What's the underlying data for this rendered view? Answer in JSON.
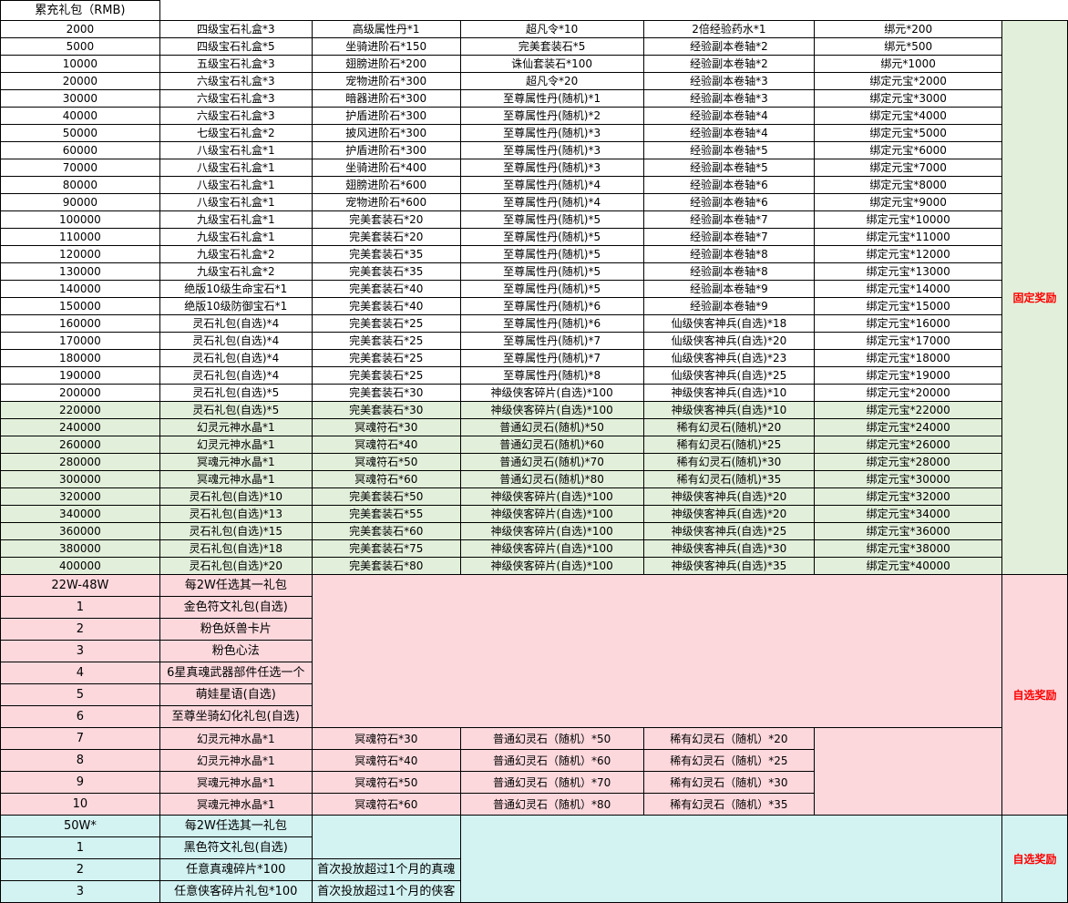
{
  "header": {
    "title": "累充礼包（RMB)"
  },
  "fixed": {
    "label": "固定奖励",
    "colors": {
      "white": "#ffffff",
      "green": "#e2efda"
    },
    "rows": [
      [
        "2000",
        "四级宝石礼盒*3",
        "高级属性丹*1",
        "超凡令*10",
        "2倍经验药水*1",
        "绑元*200"
      ],
      [
        "5000",
        "四级宝石礼盒*5",
        "坐骑进阶石*150",
        "完美套装石*5",
        "经验副本卷轴*2",
        "绑元*500"
      ],
      [
        "10000",
        "五级宝石礼盒*3",
        "翅膀进阶石*200",
        "诛仙套装石*100",
        "经验副本卷轴*2",
        "绑元*1000"
      ],
      [
        "20000",
        "六级宝石礼盒*3",
        "宠物进阶石*300",
        "超凡令*20",
        "经验副本卷轴*3",
        "绑定元宝*2000"
      ],
      [
        "30000",
        "六级宝石礼盒*3",
        "暗器进阶石*300",
        "至尊属性丹(随机)*1",
        "经验副本卷轴*3",
        "绑定元宝*3000"
      ],
      [
        "40000",
        "六级宝石礼盒*3",
        "护盾进阶石*300",
        "至尊属性丹(随机)*2",
        "经验副本卷轴*4",
        "绑定元宝*4000"
      ],
      [
        "50000",
        "七级宝石礼盒*2",
        "披风进阶石*300",
        "至尊属性丹(随机)*3",
        "经验副本卷轴*4",
        "绑定元宝*5000"
      ],
      [
        "60000",
        "八级宝石礼盒*1",
        "护盾进阶石*300",
        "至尊属性丹(随机)*3",
        "经验副本卷轴*5",
        "绑定元宝*6000"
      ],
      [
        "70000",
        "八级宝石礼盒*1",
        "坐骑进阶石*400",
        "至尊属性丹(随机)*3",
        "经验副本卷轴*5",
        "绑定元宝*7000"
      ],
      [
        "80000",
        "八级宝石礼盒*1",
        "翅膀进阶石*600",
        "至尊属性丹(随机)*4",
        "经验副本卷轴*6",
        "绑定元宝*8000"
      ],
      [
        "90000",
        "八级宝石礼盒*1",
        "宠物进阶石*600",
        "至尊属性丹(随机)*4",
        "经验副本卷轴*6",
        "绑定元宝*9000"
      ],
      [
        "100000",
        "九级宝石礼盒*1",
        "完美套装石*20",
        "至尊属性丹(随机)*5",
        "经验副本卷轴*7",
        "绑定元宝*10000"
      ],
      [
        "110000",
        "九级宝石礼盒*1",
        "完美套装石*20",
        "至尊属性丹(随机)*5",
        "经验副本卷轴*7",
        "绑定元宝*11000"
      ],
      [
        "120000",
        "九级宝石礼盒*2",
        "完美套装石*35",
        "至尊属性丹(随机)*5",
        "经验副本卷轴*8",
        "绑定元宝*12000"
      ],
      [
        "130000",
        "九级宝石礼盒*2",
        "完美套装石*35",
        "至尊属性丹(随机)*5",
        "经验副本卷轴*8",
        "绑定元宝*13000"
      ],
      [
        "140000",
        "绝版10级生命宝石*1",
        "完美套装石*40",
        "至尊属性丹(随机)*5",
        "经验副本卷轴*9",
        "绑定元宝*14000"
      ],
      [
        "150000",
        "绝版10级防御宝石*1",
        "完美套装石*40",
        "至尊属性丹(随机)*6",
        "经验副本卷轴*9",
        "绑定元宝*15000"
      ],
      [
        "160000",
        "灵石礼包(自选)*4",
        "完美套装石*25",
        "至尊属性丹(随机)*6",
        "仙级侠客神兵(自选)*18",
        "绑定元宝*16000"
      ],
      [
        "170000",
        "灵石礼包(自选)*4",
        "完美套装石*25",
        "至尊属性丹(随机)*7",
        "仙级侠客神兵(自选)*20",
        "绑定元宝*17000"
      ],
      [
        "180000",
        "灵石礼包(自选)*4",
        "完美套装石*25",
        "至尊属性丹(随机)*7",
        "仙级侠客神兵(自选)*23",
        "绑定元宝*18000"
      ],
      [
        "190000",
        "灵石礼包(自选)*4",
        "完美套装石*25",
        "至尊属性丹(随机)*8",
        "仙级侠客神兵(自选)*25",
        "绑定元宝*19000"
      ],
      [
        "200000",
        "灵石礼包(自选)*5",
        "完美套装石*30",
        "神级侠客碎片(自选)*100",
        "神级侠客神兵(自选)*10",
        "绑定元宝*20000"
      ],
      [
        "220000",
        "灵石礼包(自选)*5",
        "完美套装石*30",
        "神级侠客碎片(自选)*100",
        "神级侠客神兵(自选)*10",
        "绑定元宝*22000"
      ],
      [
        "240000",
        "幻灵元神水晶*1",
        "冥魂符石*30",
        "普通幻灵石(随机)*50",
        "稀有幻灵石(随机)*20",
        "绑定元宝*24000"
      ],
      [
        "260000",
        "幻灵元神水晶*1",
        "冥魂符石*40",
        "普通幻灵石(随机)*60",
        "稀有幻灵石(随机)*25",
        "绑定元宝*26000"
      ],
      [
        "280000",
        "冥魂元神水晶*1",
        "冥魂符石*50",
        "普通幻灵石(随机)*70",
        "稀有幻灵石(随机)*30",
        "绑定元宝*28000"
      ],
      [
        "300000",
        "冥魂元神水晶*1",
        "冥魂符石*60",
        "普通幻灵石(随机)*80",
        "稀有幻灵石(随机)*35",
        "绑定元宝*30000"
      ],
      [
        "320000",
        "灵石礼包(自选)*10",
        "完美套装石*50",
        "神级侠客碎片(自选)*100",
        "神级侠客神兵(自选)*20",
        "绑定元宝*32000"
      ],
      [
        "340000",
        "灵石礼包(自选)*13",
        "完美套装石*55",
        "神级侠客碎片(自选)*100",
        "神级侠客神兵(自选)*20",
        "绑定元宝*34000"
      ],
      [
        "360000",
        "灵石礼包(自选)*15",
        "完美套装石*60",
        "神级侠客碎片(自选)*100",
        "神级侠客神兵(自选)*25",
        "绑定元宝*36000"
      ],
      [
        "380000",
        "灵石礼包(自选)*18",
        "完美套装石*75",
        "神级侠客碎片(自选)*100",
        "神级侠客神兵(自选)*30",
        "绑定元宝*38000"
      ],
      [
        "400000",
        "灵石礼包(自选)*20",
        "完美套装石*80",
        "神级侠客碎片(自选)*100",
        "神级侠客神兵(自选)*35",
        "绑定元宝*40000"
      ]
    ]
  },
  "choice1": {
    "label": "自选奖励",
    "color": "#fcd8dd",
    "range": "22W-48W",
    "rule": "每2W任选其一礼包",
    "options": [
      [
        "1",
        "金色符文礼包(自选)"
      ],
      [
        "2",
        "粉色妖兽卡片"
      ],
      [
        "3",
        "粉色心法"
      ],
      [
        "4",
        "6星真魂武器部件任选一个"
      ],
      [
        "5",
        "萌娃星语(自选)"
      ],
      [
        "6",
        "至尊坐骑幻化礼包(自选)"
      ],
      [
        "7",
        "幻灵元神水晶*1",
        "冥魂符石*30",
        "普通幻灵石（随机）*50",
        "稀有幻灵石（随机）*20"
      ],
      [
        "8",
        "幻灵元神水晶*1",
        "冥魂符石*40",
        "普通幻灵石（随机）*60",
        "稀有幻灵石（随机）*25"
      ],
      [
        "9",
        "冥魂元神水晶*1",
        "冥魂符石*50",
        "普通幻灵石（随机）*70",
        "稀有幻灵石（随机）*30"
      ],
      [
        "10",
        "冥魂元神水晶*1",
        "冥魂符石*60",
        "普通幻灵石（随机）*80",
        "稀有幻灵石（随机）*35"
      ]
    ]
  },
  "choice2": {
    "label": "自选奖励",
    "color": "#d3f2f2",
    "range": "50W*",
    "rule": "每2W任选其一礼包",
    "options": [
      [
        "1",
        "黑色符文礼包(自选)"
      ],
      [
        "2",
        "任意真魂碎片*100",
        "首次投放超过1个月的真魂"
      ],
      [
        "3",
        "任意侠客碎片礼包*100",
        "首次投放超过1个月的侠客"
      ]
    ]
  }
}
